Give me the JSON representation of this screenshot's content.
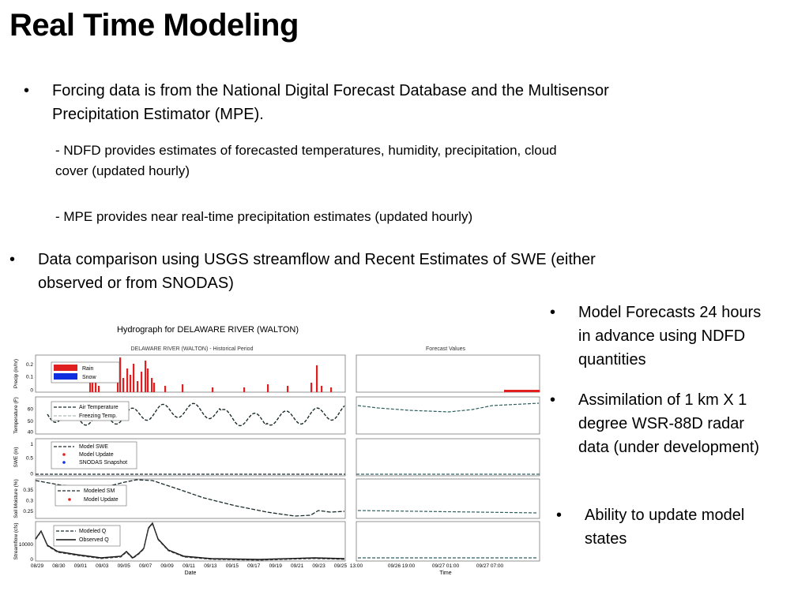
{
  "slide": {
    "title": "Real Time Modeling",
    "bullet_1": "Forcing data is from the National Digital Forecast Database and the Multisensor Precipitation Estimator (MPE).",
    "sub_1": "- NDFD provides estimates of forecasted temperatures, humidity, precipitation, cloud cover (updated hourly)",
    "sub_2": "- MPE provides near real-time precipitation estimates (updated hourly)",
    "bullet_2": "Data comparison using USGS streamflow and Recent Estimates of SWE (either observed or from SNODAS)",
    "right_1": "Model Forecasts 24 hours in advance using NDFD quantities",
    "right_2": "Assimilation of 1 km X 1 degree WSR-88D radar data (under development)",
    "right_3": "Ability to update model states",
    "bullet_char": "•"
  },
  "chart_labels": {
    "title": "Hydrograph for DELAWARE RIVER (WALTON)",
    "historical": "DELAWARE RIVER (WALTON) - Historical Period",
    "forecast": "Forecast Values",
    "xlabel_left": "Date",
    "xlabel_right": "Time",
    "ylabels": [
      "Precip (in/hr)",
      "Temperature (F)",
      "SWE (in)",
      "Soil Moisture (%)",
      "Streamflow (cfs)"
    ],
    "legend_precip": [
      "Rain",
      "Snow"
    ],
    "legend_temp": [
      "Air Temperature",
      "Freezing Temp."
    ],
    "legend_swe": [
      "Model SWE",
      "Model Update",
      "SNODAS Snapshot"
    ],
    "legend_sm": [
      "Modeled SM",
      "Model Update"
    ],
    "legend_q": [
      "Modeled Q",
      "Observed Q"
    ],
    "ticks_precip": [
      "0.2",
      "0.1",
      "0"
    ],
    "ticks_temp": [
      "60",
      "50",
      "40"
    ],
    "ticks_swe": [
      "1",
      "0.5",
      "0"
    ],
    "ticks_sm": [
      "0.35",
      "0.3",
      "0.25"
    ],
    "ticks_q": [
      "10000",
      "0"
    ],
    "x_dates": [
      "08/29",
      "08/30",
      "09/01",
      "09/03",
      "09/05",
      "09/07",
      "09/09",
      "09/11",
      "09/13",
      "09/15",
      "09/17",
      "09/19",
      "09/21",
      "09/23",
      "09/25"
    ],
    "x_times": [
      "13:00",
      "09/26 19:00",
      "09/27 01:00",
      "09/27 07:00"
    ]
  },
  "colors": {
    "rain": "#e02020",
    "snow": "#1030e0",
    "dash": "#1a2a2a",
    "forecast_dash": "#2f5f5f"
  }
}
